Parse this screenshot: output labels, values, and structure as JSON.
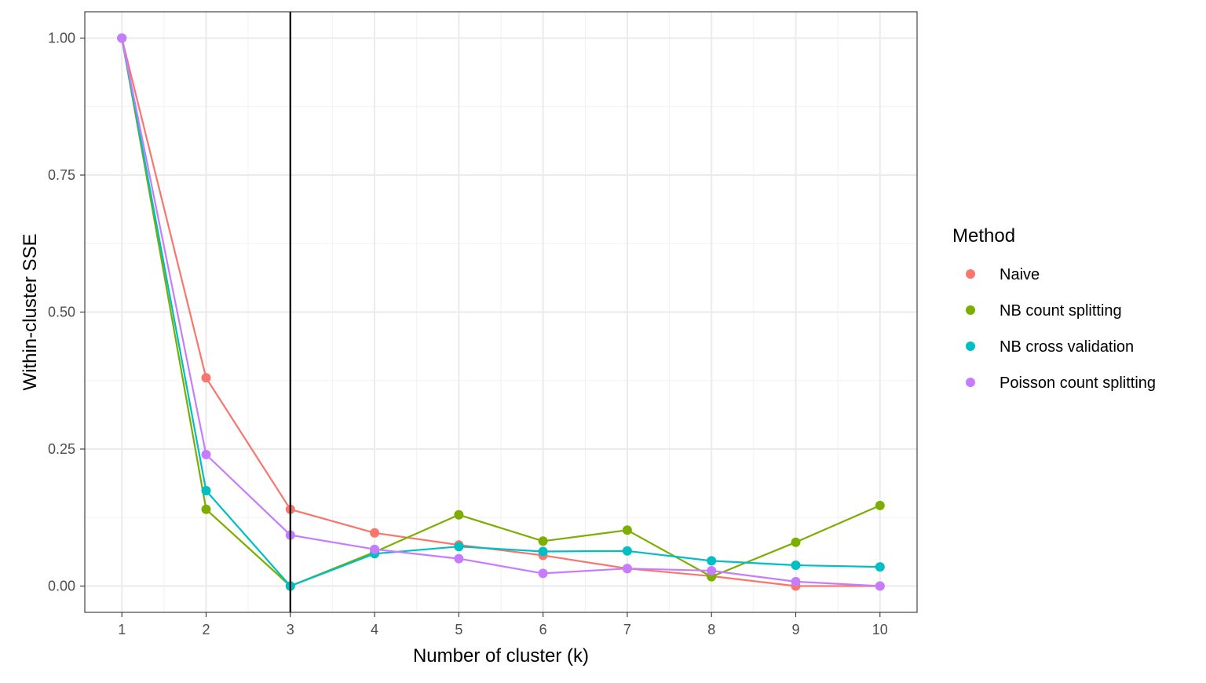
{
  "chart_data": {
    "type": "line",
    "xlabel": "Number of cluster (k)",
    "ylabel": "Within-cluster SSE",
    "x": [
      1,
      2,
      3,
      4,
      5,
      6,
      7,
      8,
      9,
      10
    ],
    "xlim": [
      0.56,
      10.44
    ],
    "ylim": [
      -0.048,
      1.048
    ],
    "x_ticks": [
      1,
      2,
      3,
      4,
      5,
      6,
      7,
      8,
      9,
      10
    ],
    "y_ticks": [
      0.0,
      0.25,
      0.5,
      0.75,
      1.0
    ],
    "y_tick_labels": [
      "0.00",
      "0.25",
      "0.50",
      "0.75",
      "1.00"
    ],
    "grid": true,
    "vline_x": 3,
    "legend": {
      "title": "Method",
      "position": "right"
    },
    "series": [
      {
        "name": "Naive",
        "color": "#F8766D",
        "values": [
          1.0,
          0.38,
          0.14,
          0.097,
          0.075,
          0.056,
          0.032,
          0.018,
          0.0,
          0.0
        ]
      },
      {
        "name": "NB count splitting",
        "color": "#7CAE00",
        "values": [
          1.0,
          0.14,
          0.0,
          0.062,
          0.13,
          0.082,
          0.102,
          0.017,
          0.08,
          0.147
        ]
      },
      {
        "name": "NB cross validation",
        "color": "#00BFC4",
        "values": [
          1.0,
          0.174,
          0.0,
          0.059,
          0.072,
          0.063,
          0.064,
          0.046,
          0.038,
          0.035
        ]
      },
      {
        "name": "Poisson count splitting",
        "color": "#C77CFF",
        "values": [
          1.0,
          0.24,
          0.093,
          0.067,
          0.05,
          0.023,
          0.032,
          0.028,
          0.008,
          0.0
        ]
      }
    ]
  }
}
